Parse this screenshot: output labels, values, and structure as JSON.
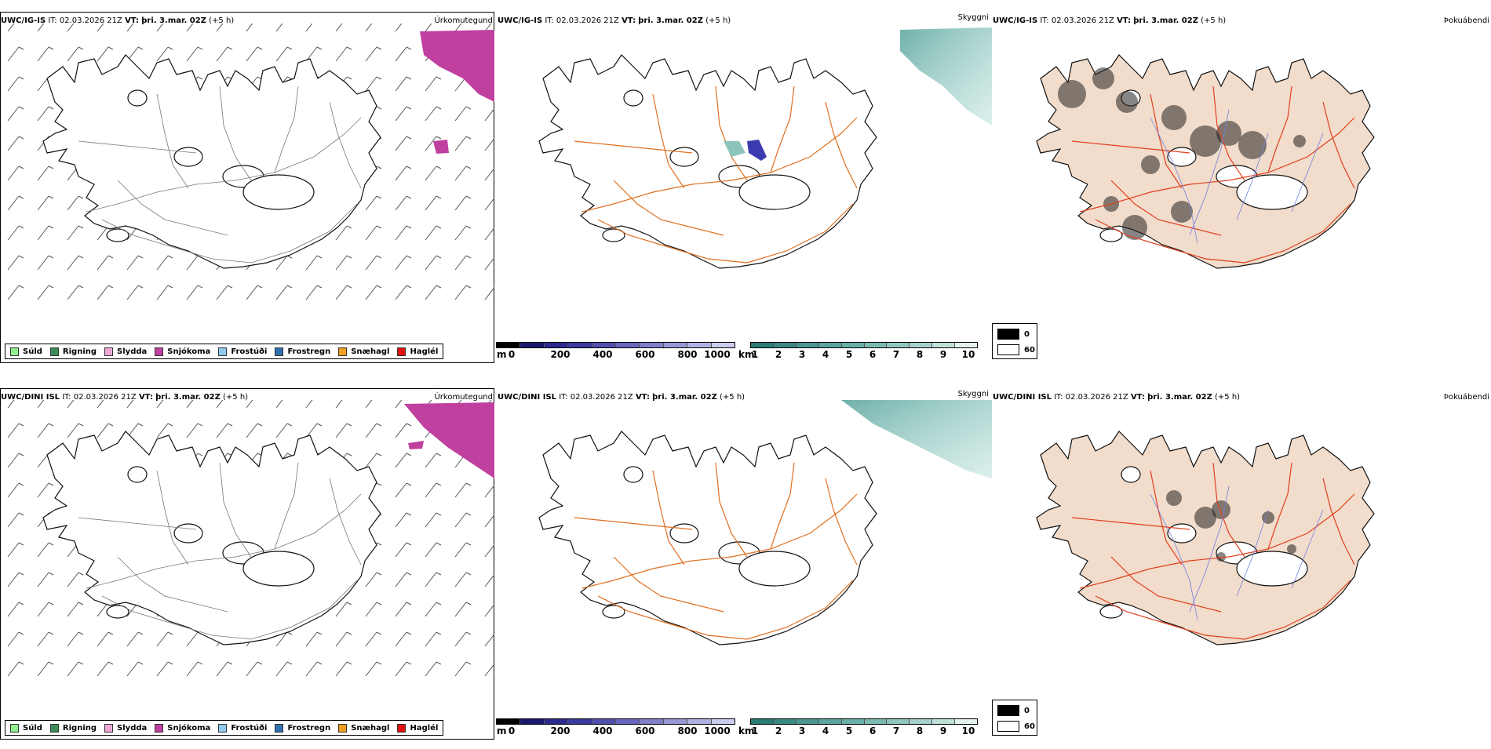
{
  "rows": [
    {
      "model": "UWC/IG-IS",
      "it_label": "IT:",
      "it": "02.03.2026 21Z",
      "vt_label": "VT:",
      "vt": "þri. 3.mar. 02Z",
      "lead": "(+5 h)",
      "precip_title": "Úrkomutegund",
      "vis_title": "Skyggni",
      "fog_title": "Þokuábendi"
    },
    {
      "model": "UWC/DINI ISL",
      "it_label": "IT:",
      "it": "02.03.2026 21Z",
      "vt_label": "VT:",
      "vt": "þri. 3.mar. 02Z",
      "lead": "(+5 h)",
      "precip_title": "Úrkomutegund",
      "vis_title": "Skyggni",
      "fog_title": "Þokuábendi"
    }
  ],
  "precip_legend": [
    {
      "label": "Súld",
      "color": "#90ee90"
    },
    {
      "label": "Rigning",
      "color": "#3c8c5a"
    },
    {
      "label": "Slydda",
      "color": "#f0a8d8"
    },
    {
      "label": "Snjókoma",
      "color": "#c040a0"
    },
    {
      "label": "Frostúði",
      "color": "#90c8f0"
    },
    {
      "label": "Frostregn",
      "color": "#3070b0"
    },
    {
      "label": "Snæhagl",
      "color": "#f0a020"
    },
    {
      "label": "Haglél",
      "color": "#e01010"
    }
  ],
  "height_bar": {
    "unit": "m",
    "ticks": [
      "0",
      "200",
      "400",
      "600",
      "800",
      "1000"
    ]
  },
  "vis_bar": {
    "unit": "km",
    "ticks": [
      "1",
      "2",
      "3",
      "4",
      "5",
      "6",
      "7",
      "8",
      "9",
      "10"
    ]
  },
  "fog_legend": {
    "top": "0",
    "bottom": "60"
  },
  "colors": {
    "snow": "#c040a0",
    "visibility": "#5fa8a0",
    "low_cloud": "#3b3bb0",
    "roads": "#e07020",
    "land_fog": "#f2dccb",
    "fog_roads": "#e04020",
    "rivers": "#7080e0"
  }
}
